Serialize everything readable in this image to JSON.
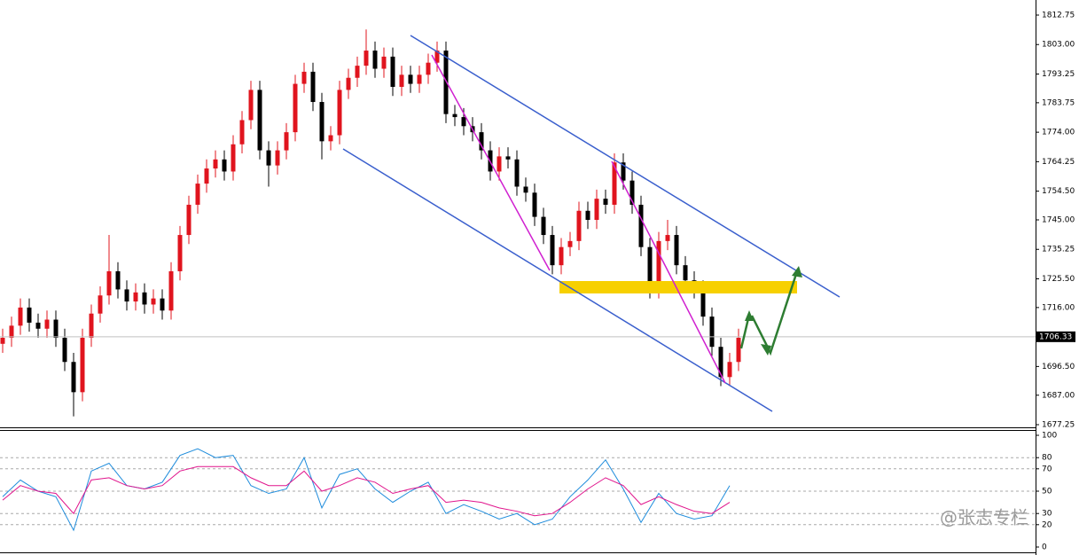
{
  "chart_data": [
    {
      "type": "candlestick",
      "ylim": [
        1677.25,
        1812.75
      ],
      "yticks": [
        1812.75,
        {
          "value": 1803,
          "label": "1803.00"
        },
        1793.25,
        1783.75,
        {
          "value": 1774,
          "label": "1774.00"
        },
        1764.25,
        {
          "value": 1754.5,
          "label": "1754.50"
        },
        {
          "value": 1745,
          "label": "1745.00"
        },
        1735.25,
        {
          "value": 1725.5,
          "label": "1725.50"
        },
        {
          "value": 1716,
          "label": "1716.00"
        },
        {
          "value": 1696.5,
          "label": "1696.50"
        },
        {
          "value": 1687,
          "label": "1687.00"
        },
        1677.25
      ],
      "current_price": 1706.33,
      "up_color": "#e0141e",
      "down_color": "#000000",
      "open": [
        1704,
        1706,
        1710,
        1716,
        1711,
        1709,
        1712,
        1706,
        1698,
        1688,
        1706,
        1714,
        1720,
        1728,
        1722,
        1718,
        1721,
        1717,
        1719,
        1715,
        1728,
        1740,
        1750,
        1757,
        1762,
        1765,
        1761,
        1770,
        1778,
        1788,
        1768,
        1763,
        1768,
        1774,
        1790,
        1794,
        1784,
        1771,
        1773,
        1788,
        1792,
        1796,
        1801,
        1795,
        1799,
        1789,
        1793,
        1790,
        1793,
        1797,
        1801,
        1780,
        1779,
        1776,
        1774,
        1768,
        1761,
        1766,
        1765,
        1756,
        1754,
        1746,
        1740,
        1730,
        1736,
        1738,
        1748,
        1745,
        1752,
        1750,
        1764,
        1758,
        1750,
        1736,
        1722,
        1738,
        1740,
        1730,
        1725,
        1722,
        1713,
        1703,
        1693,
        1698
      ],
      "high": [
        1709,
        1713,
        1719,
        1719,
        1714,
        1715,
        1715,
        1709,
        1701,
        1709,
        1717,
        1723,
        1740,
        1731,
        1725,
        1724,
        1724,
        1722,
        1722,
        1731,
        1743,
        1753,
        1760,
        1765,
        1768,
        1768,
        1773,
        1781,
        1791,
        1791,
        1771,
        1771,
        1777,
        1793,
        1797,
        1797,
        1787,
        1776,
        1791,
        1795,
        1799,
        1808,
        1804,
        1802,
        1802,
        1796,
        1796,
        1796,
        1800,
        1804,
        1804,
        1783,
        1782,
        1779,
        1777,
        1771,
        1769,
        1769,
        1768,
        1759,
        1757,
        1749,
        1743,
        1739,
        1741,
        1751,
        1751,
        1755,
        1755,
        1767,
        1767,
        1761,
        1753,
        1739,
        1741,
        1745,
        1743,
        1733,
        1728,
        1725,
        1716,
        1706,
        1701,
        1709
      ],
      "low": [
        1701,
        1703,
        1707,
        1708,
        1706,
        1706,
        1703,
        1695,
        1680,
        1685,
        1703,
        1711,
        1717,
        1719,
        1715,
        1715,
        1714,
        1714,
        1712,
        1712,
        1725,
        1737,
        1747,
        1754,
        1759,
        1758,
        1758,
        1767,
        1775,
        1765,
        1756,
        1760,
        1765,
        1771,
        1787,
        1781,
        1765,
        1768,
        1770,
        1785,
        1789,
        1793,
        1792,
        1792,
        1786,
        1786,
        1787,
        1787,
        1790,
        1794,
        1777,
        1776,
        1773,
        1771,
        1765,
        1758,
        1758,
        1762,
        1753,
        1751,
        1743,
        1737,
        1727,
        1727,
        1733,
        1735,
        1742,
        1742,
        1747,
        1747,
        1755,
        1747,
        1733,
        1719,
        1719,
        1735,
        1727,
        1722,
        1719,
        1710,
        1700,
        1690,
        1690,
        1695
      ],
      "close": [
        1706,
        1710,
        1716,
        1711,
        1709,
        1712,
        1706,
        1698,
        1688,
        1706,
        1714,
        1720,
        1728,
        1722,
        1718,
        1721,
        1717,
        1719,
        1715,
        1728,
        1740,
        1750,
        1757,
        1762,
        1765,
        1761,
        1770,
        1778,
        1788,
        1768,
        1763,
        1768,
        1774,
        1790,
        1794,
        1784,
        1771,
        1773,
        1788,
        1792,
        1796,
        1801,
        1795,
        1799,
        1789,
        1793,
        1790,
        1793,
        1797,
        1801,
        1780,
        1779,
        1776,
        1774,
        1768,
        1761,
        1766,
        1765,
        1756,
        1754,
        1746,
        1740,
        1730,
        1736,
        1738,
        1748,
        1745,
        1752,
        1750,
        1764,
        1758,
        1750,
        1736,
        1722,
        1738,
        1740,
        1730,
        1725,
        1722,
        1713,
        1703,
        1693,
        1698,
        1706
      ]
    },
    {
      "type": "line",
      "ylim": [
        0,
        100
      ],
      "yticks": [
        100,
        80,
        70,
        50,
        30,
        20,
        0
      ],
      "series": [
        {
          "color": "#1e8cdc",
          "values": [
            45,
            60,
            50,
            45,
            15,
            68,
            75,
            55,
            52,
            58,
            82,
            88,
            80,
            82,
            55,
            48,
            52,
            80,
            35,
            65,
            70,
            52,
            40,
            50,
            58,
            30,
            38,
            32,
            25,
            30,
            20,
            25,
            45,
            60,
            78,
            52,
            22,
            48,
            30,
            25,
            28,
            55
          ]
        },
        {
          "color": "#e0148c",
          "values": [
            42,
            55,
            50,
            48,
            30,
            60,
            62,
            55,
            52,
            55,
            68,
            72,
            72,
            72,
            62,
            55,
            55,
            68,
            50,
            55,
            62,
            58,
            48,
            52,
            55,
            40,
            42,
            40,
            35,
            32,
            28,
            30,
            40,
            52,
            62,
            55,
            38,
            45,
            38,
            32,
            30,
            40
          ]
        }
      ]
    },
    {
      "watermark": "@张志专栏"
    }
  ]
}
